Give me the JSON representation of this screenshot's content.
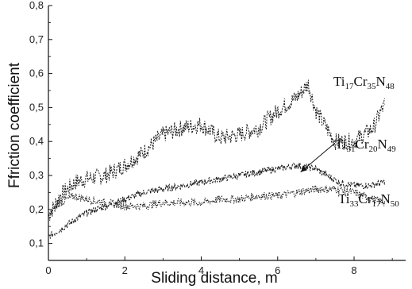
{
  "chart_data": {
    "type": "line",
    "xlabel": "Sliding distance, m",
    "ylabel": "Ffriction coefficient",
    "xlim": [
      0,
      9.35
    ],
    "ylim": [
      0.05,
      0.8
    ],
    "xticks": [
      0,
      2,
      4,
      6,
      8
    ],
    "xtick_labels": [
      "0",
      "2",
      "4",
      "6",
      "8"
    ],
    "yticks": [
      0.1,
      0.2,
      0.3,
      0.4,
      0.5,
      0.6,
      0.7,
      0.8
    ],
    "ytick_labels": [
      "0,1",
      "0,2",
      "0,3",
      "0,4",
      "0,5",
      "0,6",
      "0,7",
      "0,8"
    ],
    "grid": false,
    "legend": "none",
    "series": [
      {
        "label": {
          "base": "Ti",
          "s1": "17",
          "mid": "Cr",
          "s2": "35",
          "end": "N",
          "s3": "48"
        },
        "color": "#1a1a1a",
        "noise": 0.025,
        "x": [
          0.0,
          0.3,
          0.7,
          1.0,
          1.5,
          2.0,
          2.5,
          3.0,
          3.5,
          4.0,
          4.5,
          5.0,
          5.5,
          6.0,
          6.5,
          6.8,
          7.0,
          7.5,
          8.0,
          8.5,
          8.8
        ],
        "y": [
          0.18,
          0.24,
          0.28,
          0.29,
          0.3,
          0.33,
          0.37,
          0.42,
          0.44,
          0.45,
          0.41,
          0.42,
          0.44,
          0.49,
          0.53,
          0.57,
          0.49,
          0.4,
          0.4,
          0.44,
          0.51
        ]
      },
      {
        "label": {
          "base": "Ti",
          "s1": "31",
          "mid": "Cr",
          "s2": "20",
          "end": "N",
          "s3": "49"
        },
        "color": "#1a1a1a",
        "noise": 0.01,
        "x": [
          0.0,
          0.3,
          0.7,
          1.0,
          1.5,
          2.0,
          2.5,
          3.0,
          3.5,
          4.0,
          4.5,
          5.0,
          5.5,
          6.0,
          6.5,
          7.0,
          7.3,
          7.6,
          8.0,
          8.4,
          8.8
        ],
        "y": [
          0.12,
          0.14,
          0.17,
          0.19,
          0.21,
          0.23,
          0.25,
          0.26,
          0.27,
          0.28,
          0.29,
          0.3,
          0.31,
          0.32,
          0.33,
          0.32,
          0.3,
          0.28,
          0.27,
          0.27,
          0.28
        ]
      },
      {
        "label": {
          "base": "Ti",
          "s1": "33",
          "mid": "Cr",
          "s2": "17",
          "end": "N",
          "s3": "50"
        },
        "color": "#1a1a1a",
        "noise": 0.012,
        "x": [
          0.0,
          0.3,
          0.7,
          1.0,
          1.5,
          2.0,
          2.5,
          3.0,
          3.5,
          4.0,
          4.5,
          5.0,
          5.5,
          6.0,
          6.5,
          7.0,
          7.5,
          8.0,
          8.5,
          8.8
        ],
        "y": [
          0.18,
          0.22,
          0.24,
          0.23,
          0.22,
          0.21,
          0.21,
          0.22,
          0.22,
          0.22,
          0.23,
          0.23,
          0.24,
          0.24,
          0.25,
          0.26,
          0.26,
          0.25,
          0.23,
          0.22
        ]
      }
    ]
  }
}
